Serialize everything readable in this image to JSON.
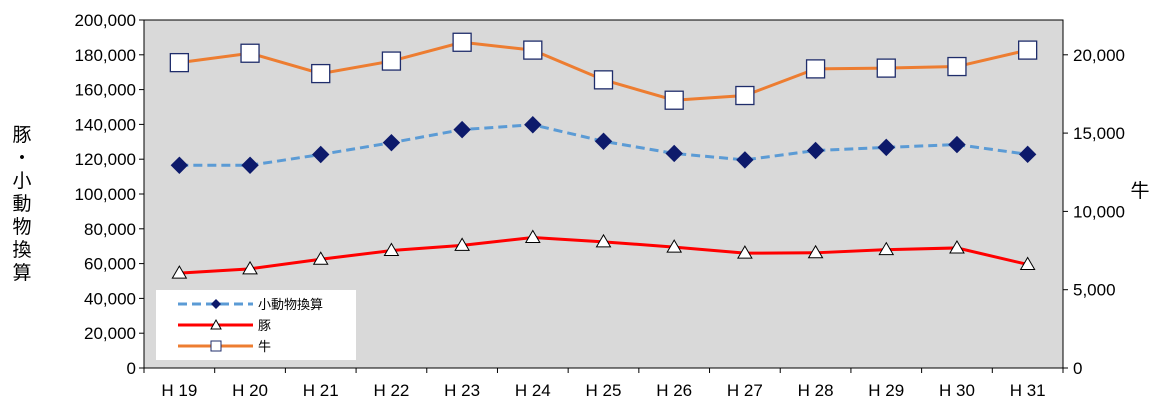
{
  "chart_data": {
    "type": "line",
    "categories": [
      "H 19",
      "H 20",
      "H 21",
      "H 22",
      "H 23",
      "H 24",
      "H 25",
      "H 26",
      "H 27",
      "H 28",
      "H 29",
      "H 30",
      "H 31"
    ],
    "y_left": {
      "label_chars": [
        "豚",
        "・",
        "小",
        "動",
        "物",
        "換",
        "算"
      ],
      "range": [
        0,
        200000
      ],
      "ticks": [
        "0",
        "20,000",
        "40,000",
        "60,000",
        "80,000",
        "100,000",
        "120,000",
        "140,000",
        "160,000",
        "180,000",
        "200,000"
      ]
    },
    "y_right": {
      "label": "牛",
      "range": [
        0,
        22222
      ],
      "ticks": [
        "0",
        "5,000",
        "10,000",
        "15,000",
        "20,000"
      ],
      "tick_values": [
        0,
        5000,
        10000,
        15000,
        20000
      ]
    },
    "series": [
      {
        "name": "小動物換算",
        "axis": "left",
        "color": "#5b9bd5",
        "marker_color": "#0d1a6b",
        "marker": "diamond",
        "dashed": true,
        "values": [
          116500,
          116500,
          122700,
          129500,
          137000,
          139800,
          130300,
          123300,
          119600,
          125000,
          126800,
          128400,
          122800
        ]
      },
      {
        "name": "豚",
        "axis": "left",
        "color": "#ff0000",
        "marker": "triangle",
        "dashed": false,
        "values": [
          54500,
          57000,
          62500,
          67500,
          70500,
          75000,
          72500,
          69500,
          66000,
          66200,
          68000,
          69000,
          59500
        ]
      },
      {
        "name": "牛",
        "axis": "right",
        "color": "#ed7d31",
        "marker": "square",
        "dashed": false,
        "values": [
          19500,
          20100,
          18800,
          19600,
          20800,
          20300,
          18400,
          17100,
          17400,
          19100,
          19150,
          19250,
          20300
        ]
      }
    ],
    "legend": {
      "position": "bottom-left",
      "entries": [
        "小動物換算",
        "豚",
        "牛"
      ]
    },
    "grid": false,
    "plot_background": "#d9d9d9"
  }
}
